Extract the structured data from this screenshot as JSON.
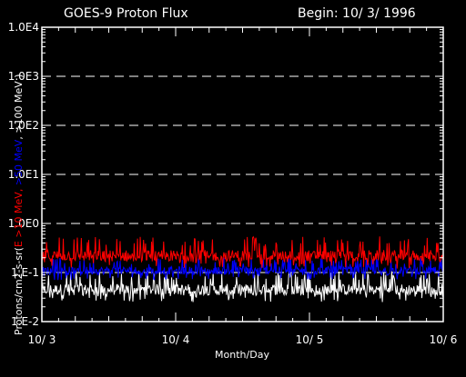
{
  "chart_data": {
    "type": "line",
    "title": "GOES-9 Proton Flux",
    "subtitle": "Begin: 10/ 3/ 1996",
    "xlabel": "Month/Day",
    "ylabel_parts": [
      {
        "text": "Protons/cm2-s-sr(",
        "color": "#ffffff"
      },
      {
        "text": "E >10 MeV, ",
        "color": "#ff0000"
      },
      {
        "text": ">50 MeV",
        "color": "#0000ff"
      },
      {
        "text": ", >100 MeV )",
        "color": "#ffffff"
      }
    ],
    "y_scale": "log",
    "ylim": [
      0.01,
      10000
    ],
    "xlim_days": [
      0,
      3
    ],
    "x_ticks": [
      {
        "label": "10/ 3",
        "day": 0
      },
      {
        "label": "10/ 4",
        "day": 1
      },
      {
        "label": "10/ 5",
        "day": 2
      },
      {
        "label": "10/ 6",
        "day": 3
      }
    ],
    "y_ticks": [
      {
        "label": "1.E-2",
        "value": 0.01
      },
      {
        "label": "1.E-1",
        "value": 0.1
      },
      {
        "label": "1.0E0",
        "value": 1
      },
      {
        "label": "1.0E1",
        "value": 10
      },
      {
        "label": "1.0E2",
        "value": 100
      },
      {
        "label": "1.0E3",
        "value": 1000
      },
      {
        "label": "1.0E4",
        "value": 10000
      }
    ],
    "grid_lines": [
      0.1,
      1,
      10,
      100,
      1000
    ],
    "series": [
      {
        "color": "#ff0000",
        "typical": 0.22,
        "low": 0.12,
        "high": 0.55
      },
      {
        "color": "#0000ff",
        "typical": 0.11,
        "low": 0.07,
        "high": 0.2
      },
      {
        "color": "#ffffff",
        "typical": 0.045,
        "low": 0.025,
        "high": 0.11
      }
    ]
  }
}
